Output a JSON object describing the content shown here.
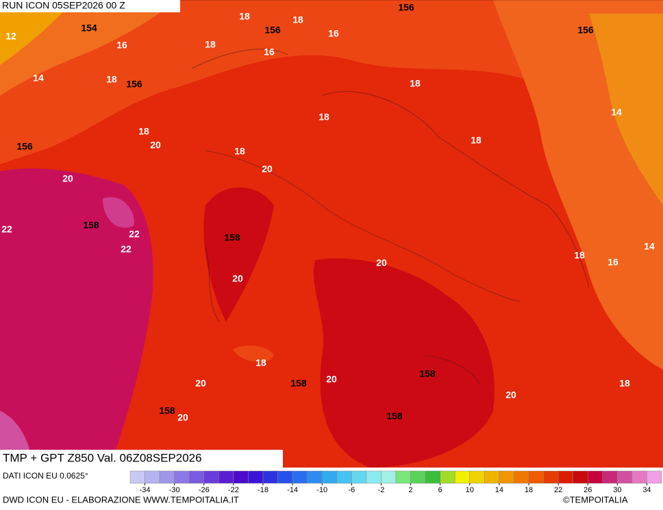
{
  "header": {
    "run": "RUN ICON 05SEP2026 00 Z"
  },
  "map": {
    "title": "TMP + GPT Z850 Val. 06Z08SEP2026",
    "contour_labels": [
      "12",
      "154",
      "16",
      "14",
      "18",
      "156",
      "18",
      "156",
      "18",
      "16",
      "16",
      "18",
      "156",
      "156",
      "18",
      "18",
      "18",
      "20",
      "156",
      "18",
      "20",
      "20",
      "18",
      "14",
      "22",
      "158",
      "22",
      "22",
      "158",
      "20",
      "18",
      "16",
      "14",
      "20",
      "18",
      "158",
      "20",
      "158",
      "20",
      "20",
      "18",
      "158",
      "20",
      "158"
    ]
  },
  "colorbar": {
    "range": [
      -36,
      36
    ],
    "ticks": [
      -34,
      -30,
      -26,
      -22,
      -18,
      -14,
      -10,
      -6,
      -2,
      2,
      6,
      10,
      14,
      18,
      22,
      26,
      30,
      34
    ],
    "colors": [
      "#c8c8f5",
      "#b4b4f0",
      "#a096eb",
      "#8c78e6",
      "#7a5ae0",
      "#6a3cda",
      "#5a1ed2",
      "#4b0acc",
      "#3c14d7",
      "#2d32e1",
      "#2850eb",
      "#2a6ef0",
      "#2e8cf0",
      "#32aaf0",
      "#46c3f0",
      "#64d7f0",
      "#8ceaf0",
      "#a0f0e6",
      "#78e678",
      "#5ad25a",
      "#3cbe3c",
      "#a0dc28",
      "#f0f000",
      "#f0d200",
      "#f0b400",
      "#f09600",
      "#f07800",
      "#f05a00",
      "#e63c00",
      "#dc1e00",
      "#c80a0a",
      "#c8003c",
      "#c8287a",
      "#d250a0",
      "#e678c3",
      "#f0a0e6"
    ]
  },
  "footer": {
    "data_source": "DATI ICON EU 0.0625°",
    "credit": "DWD ICON EU - ELABORAZIONE WWW.TEMPOITALIA.IT",
    "copyright": "©TEMPOITALIA"
  }
}
